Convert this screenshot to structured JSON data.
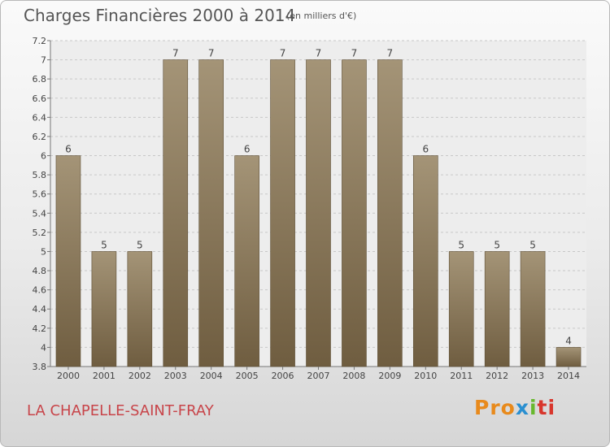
{
  "chart_data": {
    "type": "bar",
    "title": "Charges Financières 2000 à 2014",
    "subtitle": "(en milliers d'€)",
    "categories": [
      "2000",
      "2001",
      "2002",
      "2003",
      "2004",
      "2005",
      "2006",
      "2007",
      "2008",
      "2009",
      "2010",
      "2011",
      "2012",
      "2013",
      "2014"
    ],
    "values": [
      6.0,
      5.0,
      5.0,
      7.0,
      7.0,
      6.0,
      7.0,
      7.0,
      7.0,
      7.0,
      6.0,
      5.0,
      5.0,
      5.0,
      4.0
    ],
    "data_labels": [
      "6",
      "5",
      "5",
      "7",
      "7",
      "6",
      "7",
      "7",
      "7",
      "7",
      "6",
      "5",
      "5",
      "5",
      "4"
    ],
    "ylim": [
      3.8,
      7.2
    ],
    "yticks": [
      3.8,
      4,
      4.2,
      4.4,
      4.6,
      4.8,
      5,
      5.2,
      5.4,
      5.6,
      5.8,
      6,
      6.2,
      6.4,
      6.6,
      6.8,
      7,
      7.2
    ],
    "ytick_labels": [
      "3.8",
      "4",
      "4.2",
      "4.4",
      "4.6",
      "4.8",
      "5",
      "5.2",
      "5.4",
      "5.6",
      "5.8",
      "6",
      "6.2",
      "6.4",
      "6.6",
      "6.8",
      "7",
      "7.2"
    ],
    "grid": true,
    "bar_color": "#8c7a5b"
  },
  "footer": {
    "commune": "LA CHAPELLE-SAINT-FRAY",
    "logo_parts": [
      "Pro",
      "x",
      "i",
      "ti"
    ]
  }
}
